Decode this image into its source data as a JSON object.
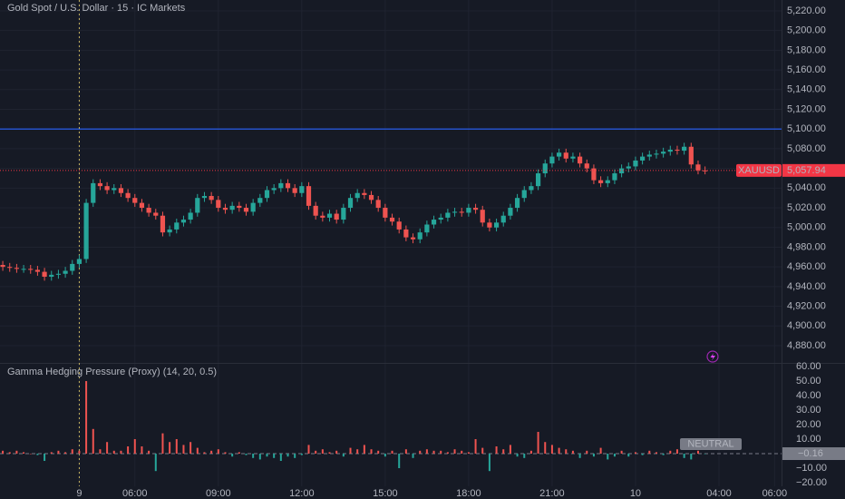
{
  "chart_data": [
    {
      "type": "candlestick",
      "title": "Gold Spot / U.S. Dollar · 15 · IC Markets",
      "symbol": "XAUUSD",
      "open": [
        4962,
        4960,
        4959,
        4958,
        4958,
        4957,
        4955,
        4950,
        4952,
        4953,
        4956,
        4963,
        4968,
        5025,
        5045,
        5042,
        5038,
        5040,
        5035,
        5030,
        5025,
        5020,
        5015,
        5012,
        4995,
        4998,
        5005,
        5008,
        5015,
        5030,
        5032,
        5028,
        5020,
        5018,
        5022,
        5020,
        5016,
        5025,
        5030,
        5038,
        5040,
        5045,
        5040,
        5035,
        5042,
        5022,
        5012,
        5010,
        5014,
        5008,
        5020,
        5030,
        5035,
        5033,
        5028,
        5020,
        5010,
        5006,
        4998,
        4990,
        4988,
        4995,
        5003,
        5008,
        5010,
        5015,
        5016,
        5015,
        5020,
        5018,
        5005,
        5000,
        5005,
        5012,
        5020,
        5030,
        5038,
        5042,
        5055,
        5065,
        5072,
        5076,
        5070,
        5072,
        5065,
        5060,
        5048,
        5045,
        5048,
        5055,
        5060,
        5062,
        5068,
        5072,
        5074,
        5075,
        5077,
        5079,
        5078,
        5082,
        5064,
        5058
      ],
      "high": [
        4966,
        4964,
        4963,
        4962,
        4962,
        4961,
        4959,
        4956,
        4957,
        4960,
        4967,
        4972,
        5029,
        5049,
        5049,
        5046,
        5044,
        5044,
        5039,
        5034,
        5029,
        5024,
        5019,
        5016,
        5002,
        5009,
        5012,
        5019,
        5034,
        5036,
        5036,
        5032,
        5024,
        5026,
        5026,
        5024,
        5029,
        5034,
        5042,
        5044,
        5049,
        5049,
        5044,
        5046,
        5046,
        5026,
        5016,
        5018,
        5018,
        5024,
        5034,
        5039,
        5039,
        5037,
        5032,
        5024,
        5014,
        5010,
        5002,
        4994,
        4999,
        5007,
        5012,
        5014,
        5019,
        5020,
        5020,
        5024,
        5024,
        5022,
        5009,
        5009,
        5016,
        5024,
        5034,
        5042,
        5046,
        5059,
        5069,
        5076,
        5080,
        5080,
        5076,
        5076,
        5069,
        5064,
        5052,
        5052,
        5059,
        5064,
        5066,
        5072,
        5076,
        5078,
        5079,
        5081,
        5083,
        5083,
        5086,
        5086,
        5068,
        5062
      ],
      "low": [
        4956,
        4955,
        4954,
        4954,
        4953,
        4951,
        4946,
        4946,
        4948,
        4949,
        4952,
        4959,
        4964,
        5021,
        5038,
        5034,
        5034,
        5031,
        5026,
        5021,
        5016,
        5011,
        5008,
        4991,
        4991,
        4994,
        5001,
        5004,
        5011,
        5026,
        5024,
        5016,
        5014,
        5014,
        5016,
        5012,
        5012,
        5021,
        5026,
        5034,
        5036,
        5036,
        5031,
        5031,
        5018,
        5008,
        5006,
        5006,
        5004,
        5004,
        5016,
        5026,
        5029,
        5024,
        5016,
        5006,
        5002,
        4994,
        4986,
        4984,
        4984,
        4991,
        4999,
        5004,
        5006,
        5011,
        5011,
        5011,
        5014,
        5001,
        4996,
        4996,
        5001,
        5008,
        5016,
        5026,
        5034,
        5038,
        5051,
        5061,
        5068,
        5066,
        5066,
        5061,
        5056,
        5044,
        5041,
        5041,
        5044,
        5051,
        5056,
        5058,
        5064,
        5068,
        5070,
        5071,
        5073,
        5074,
        5074,
        5060,
        5054,
        5054
      ],
      "close": [
        4960,
        4959,
        4958,
        4958,
        4957,
        4955,
        4950,
        4952,
        4953,
        4956,
        4963,
        4968,
        5025,
        5045,
        5042,
        5038,
        5040,
        5035,
        5030,
        5025,
        5020,
        5015,
        5012,
        4995,
        4998,
        5005,
        5008,
        5015,
        5030,
        5032,
        5028,
        5020,
        5018,
        5022,
        5020,
        5016,
        5025,
        5030,
        5038,
        5040,
        5045,
        5040,
        5035,
        5042,
        5022,
        5012,
        5010,
        5014,
        5008,
        5020,
        5030,
        5035,
        5033,
        5028,
        5020,
        5010,
        5006,
        4998,
        4990,
        4988,
        4995,
        5003,
        5008,
        5010,
        5015,
        5016,
        5015,
        5020,
        5018,
        5005,
        5000,
        5005,
        5012,
        5020,
        5030,
        5038,
        5042,
        5055,
        5065,
        5072,
        5076,
        5070,
        5072,
        5065,
        5060,
        5048,
        5045,
        5048,
        5055,
        5060,
        5062,
        5068,
        5072,
        5074,
        5075,
        5077,
        5079,
        5078,
        5082,
        5064,
        5058,
        5057.94
      ],
      "up_color": "#26a69a",
      "down_color": "#ef5350",
      "xlim": [
        -0.4,
        112
      ],
      "xticks": [
        {
          "value": 11,
          "label": "9"
        },
        {
          "value": 19,
          "label": "06:00"
        },
        {
          "value": 31,
          "label": "09:00"
        },
        {
          "value": 43,
          "label": "12:00"
        },
        {
          "value": 55,
          "label": "15:00"
        },
        {
          "value": 67,
          "label": "18:00"
        },
        {
          "value": 79,
          "label": "21:00"
        },
        {
          "value": 91,
          "label": "10"
        },
        {
          "value": 103,
          "label": "04:00"
        },
        {
          "value": 111,
          "label": "06:00"
        }
      ],
      "ylim": [
        4862.5,
        5231
      ],
      "yticks": [
        {
          "value": 4880,
          "label": "4,880.00"
        },
        {
          "value": 4900,
          "label": "4,900.00"
        },
        {
          "value": 4920,
          "label": "4,920.00"
        },
        {
          "value": 4940,
          "label": "4,940.00"
        },
        {
          "value": 4960,
          "label": "4,960.00"
        },
        {
          "value": 4980,
          "label": "4,980.00"
        },
        {
          "value": 5000,
          "label": "5,000.00"
        },
        {
          "value": 5020,
          "label": "5,020.00"
        },
        {
          "value": 5040,
          "label": "5,040.00"
        },
        {
          "value": 5060,
          "label": "5,060.00"
        },
        {
          "value": 5080,
          "label": "5,080.00"
        },
        {
          "value": 5100,
          "label": "5,100.00"
        },
        {
          "value": 5120,
          "label": "5,120.00"
        },
        {
          "value": 5140,
          "label": "5,140.00"
        },
        {
          "value": 5160,
          "label": "5,160.00"
        },
        {
          "value": 5180,
          "label": "5,180.00"
        },
        {
          "value": 5200,
          "label": "5,200.00"
        },
        {
          "value": 5220,
          "label": "5,220.00"
        }
      ],
      "grid": true,
      "hline": {
        "value": 5100,
        "color": "#2962ff"
      },
      "last_price": 5057.94,
      "last_price_label": "5,057.94",
      "last_price_color": "#f23645"
    },
    {
      "type": "bar",
      "title": "Gamma Hedging Pressure (Proxy) (14, 20, 0.5)",
      "values": [
        2,
        1,
        2,
        1,
        0,
        -1,
        -5,
        1,
        2,
        1,
        3,
        2,
        50,
        17,
        3,
        8,
        2,
        2,
        5,
        10,
        5,
        2,
        -12,
        14,
        8,
        10,
        6,
        8,
        4,
        1,
        2,
        3,
        1,
        -2,
        1,
        -1,
        -3,
        -4,
        -2,
        -3,
        -5,
        -2,
        -3,
        -1,
        6,
        2,
        3,
        1,
        2,
        -2,
        4,
        3,
        6,
        3,
        2,
        -2,
        2,
        -10,
        3,
        -3,
        2,
        3,
        2,
        2,
        1,
        3,
        2,
        1,
        10,
        4,
        -12,
        5,
        3,
        6,
        -2,
        -3,
        2,
        15,
        8,
        6,
        4,
        3,
        2,
        -3,
        2,
        -2,
        4,
        -4,
        -2,
        2,
        -2,
        1,
        -1,
        2,
        1,
        -1,
        2,
        3,
        -3,
        -4,
        2,
        -0.16
      ],
      "positive_color": "#ef5350",
      "negative_color": "#26a69a",
      "ylim": [
        -22.5,
        61.9
      ],
      "yticks": [
        {
          "value": 60,
          "label": "60.00"
        },
        {
          "value": 50,
          "label": "50.00"
        },
        {
          "value": 40,
          "label": "40.00"
        },
        {
          "value": 30,
          "label": "30.00"
        },
        {
          "value": 20,
          "label": "20.00"
        },
        {
          "value": 10,
          "label": "10.00"
        },
        {
          "value": -10,
          "label": "−10.00"
        },
        {
          "value": -20,
          "label": "−20.00"
        }
      ],
      "last_label": "−0.16",
      "status": "NEUTRAL"
    }
  ]
}
